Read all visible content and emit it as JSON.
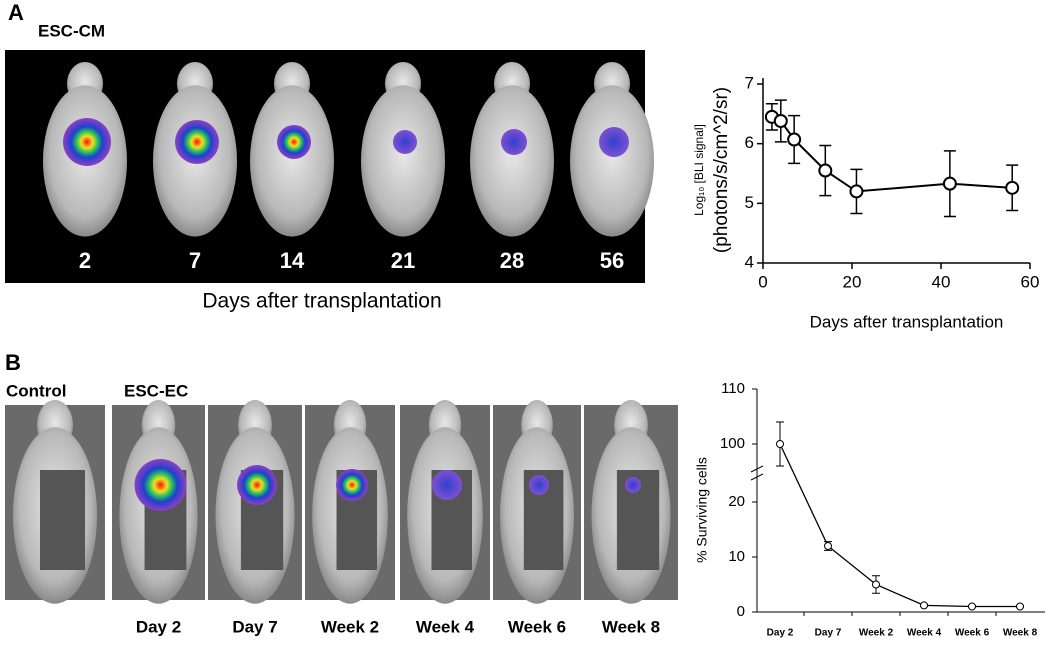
{
  "panels": {
    "a": {
      "label": "A",
      "title": "ESC-CM",
      "time_labels": [
        "2",
        "7",
        "14",
        "21",
        "28",
        "56"
      ],
      "caption": "Days after transplantation"
    },
    "b": {
      "label": "B",
      "control": "Control",
      "title": "ESC-EC",
      "time_labels": [
        "Day 2",
        "Day 7",
        "Week 2",
        "Week 4",
        "Week 6",
        "Week 8"
      ]
    }
  },
  "chart_data": [
    {
      "type": "line",
      "y_label": "Log₁₀ [BLI signal]",
      "y_label_2": "(photons/s/cm^2/sr)",
      "x_label": "Days after transplantation",
      "x": [
        2,
        4,
        7,
        14,
        21,
        42,
        56
      ],
      "values": [
        6.45,
        6.38,
        6.07,
        5.55,
        5.2,
        5.33,
        5.26
      ],
      "errors": [
        0.22,
        0.35,
        0.4,
        0.42,
        0.37,
        0.55,
        0.38
      ],
      "xlim": [
        0,
        60
      ],
      "xticks": [
        0,
        20,
        40,
        60
      ],
      "ylim": [
        4,
        7
      ],
      "yticks": [
        4,
        5,
        6,
        7
      ],
      "color": "#000000"
    },
    {
      "type": "line",
      "y_label": "% Surviving cells",
      "categories": [
        "Day 2",
        "Day 7",
        "Week 2",
        "Week 4",
        "Week 6",
        "Week 8"
      ],
      "values": [
        100,
        12,
        5,
        1.2,
        1,
        1
      ],
      "errors": [
        4,
        0.8,
        1.6,
        0.2,
        0.1,
        0.1
      ],
      "ylim": [
        0,
        110
      ],
      "ybreak": [
        24,
        96
      ],
      "yticks": [
        0,
        10,
        20,
        100,
        110
      ],
      "color": "#000000"
    }
  ]
}
